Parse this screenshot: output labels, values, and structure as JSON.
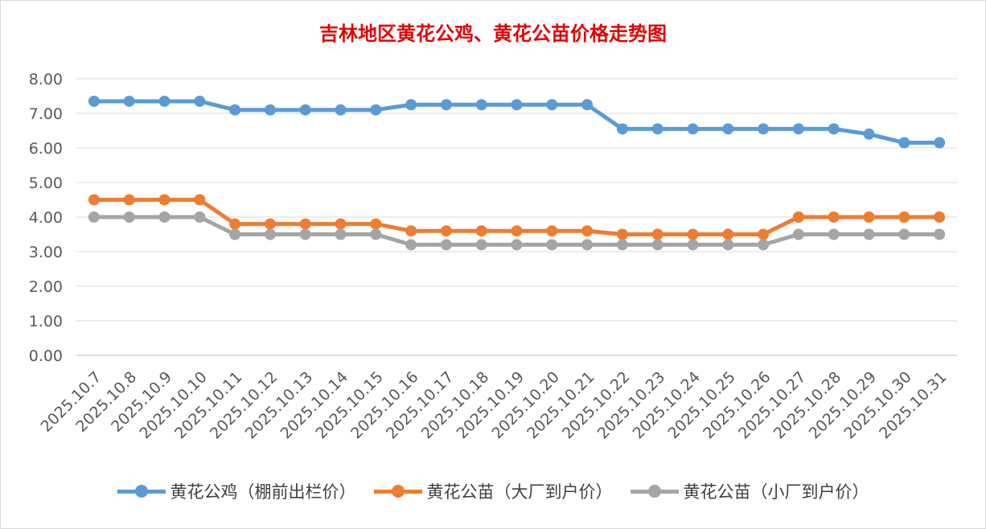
{
  "colors": {
    "title": "#e60000",
    "grid": "#d9d9d9",
    "axis": "#bfbfbf",
    "tick": "#595959",
    "series": [
      "#5b9bd5",
      "#ed7d31",
      "#a5a5a5"
    ]
  },
  "chart_data": {
    "type": "line",
    "title": "吉林地区黄花公鸡、黄花公苗价格走势图",
    "xlabel": "",
    "ylabel": "",
    "ylim": [
      0,
      8
    ],
    "yticks": [
      "0.00",
      "1.00",
      "2.00",
      "3.00",
      "4.00",
      "5.00",
      "6.00",
      "7.00",
      "8.00"
    ],
    "grid": true,
    "legend_position": "bottom",
    "categories": [
      "2025.10.7",
      "2025.10.8",
      "2025.10.9",
      "2025.10.10",
      "2025.10.11",
      "2025.10.12",
      "2025.10.13",
      "2025.10.14",
      "2025.10.15",
      "2025.10.16",
      "2025.10.17",
      "2025.10.18",
      "2025.10.19",
      "2025.10.20",
      "2025.10.21",
      "2025.10.22",
      "2025.10.23",
      "2025.10.24",
      "2025.10.25",
      "2025.10.26",
      "2025.10.27",
      "2025.10.28",
      "2025.10.29",
      "2025.10.30",
      "2025.10.31"
    ],
    "series": [
      {
        "name": "黄花公鸡（棚前出栏价）",
        "values": [
          7.35,
          7.35,
          7.35,
          7.35,
          7.1,
          7.1,
          7.1,
          7.1,
          7.1,
          7.25,
          7.25,
          7.25,
          7.25,
          7.25,
          7.25,
          6.55,
          6.55,
          6.55,
          6.55,
          6.55,
          6.55,
          6.55,
          6.4,
          6.15,
          6.15
        ]
      },
      {
        "name": "黄花公苗（大厂到户价）",
        "values": [
          4.5,
          4.5,
          4.5,
          4.5,
          3.8,
          3.8,
          3.8,
          3.8,
          3.8,
          3.6,
          3.6,
          3.6,
          3.6,
          3.6,
          3.6,
          3.5,
          3.5,
          3.5,
          3.5,
          3.5,
          4.0,
          4.0,
          4.0,
          4.0,
          4.0
        ]
      },
      {
        "name": "黄花公苗（小厂到户价）",
        "values": [
          4.0,
          4.0,
          4.0,
          4.0,
          3.5,
          3.5,
          3.5,
          3.5,
          3.5,
          3.2,
          3.2,
          3.2,
          3.2,
          3.2,
          3.2,
          3.2,
          3.2,
          3.2,
          3.2,
          3.2,
          3.5,
          3.5,
          3.5,
          3.5,
          3.5
        ]
      }
    ]
  }
}
